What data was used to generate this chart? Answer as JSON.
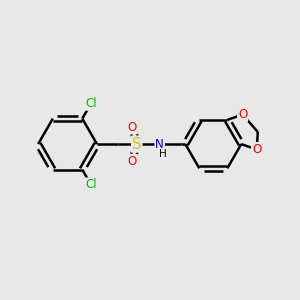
{
  "bg_color": "#e8e8e8",
  "bond_color": "#000000",
  "bond_width": 1.8,
  "atom_colors": {
    "C": "#000000",
    "H": "#000000",
    "N": "#0000cc",
    "O": "#ff0000",
    "S": "#cccc00",
    "Cl": "#00bb00"
  },
  "font_size": 8.5,
  "fig_size": [
    3.0,
    3.0
  ],
  "dpi": 100
}
